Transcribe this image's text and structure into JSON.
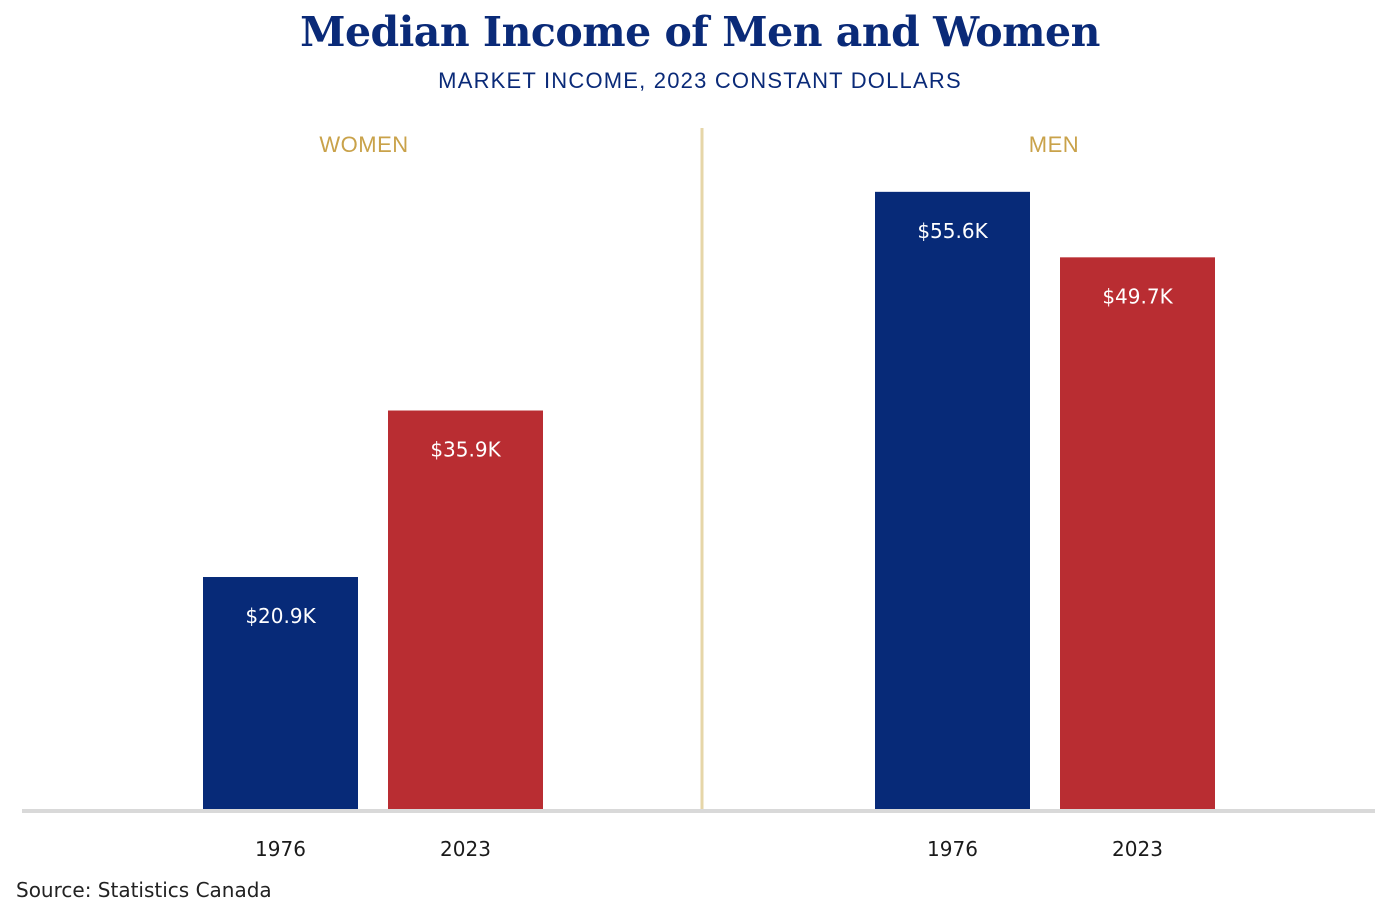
{
  "title": "Median Income of Men and Women",
  "subtitle": "MARKET INCOME, 2023 CONSTANT DOLLARS",
  "source": "Source: Statistics Canada",
  "colors": {
    "title": "#0a2a78",
    "group_label": "#c9a24a",
    "divider": "#e6d6a8",
    "baseline": "#d9d9d9",
    "1976": "#072a78",
    "2023": "#b92d32"
  },
  "chart_data": {
    "type": "bar",
    "title": "Median Income of Men and Women",
    "subtitle": "MARKET INCOME, 2023 CONSTANT DOLLARS",
    "xlabel": "",
    "ylabel": "",
    "ylim": [
      0,
      60
    ],
    "grid": false,
    "panels": [
      {
        "name": "WOMEN",
        "categories": [
          "1976",
          "2023"
        ],
        "values": [
          20.9,
          35.9
        ],
        "labels": [
          "$20.9K",
          "$35.9K"
        ]
      },
      {
        "name": "MEN",
        "categories": [
          "1976",
          "2023"
        ],
        "values": [
          55.6,
          49.7
        ],
        "labels": [
          "$55.6K",
          "$49.7K"
        ]
      }
    ],
    "units": "thousands of 2023 constant dollars"
  }
}
